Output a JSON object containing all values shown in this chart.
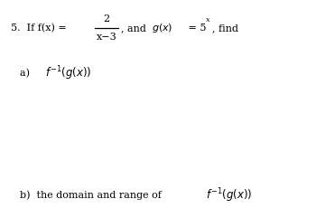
{
  "background_color": "#ffffff",
  "fig_width": 3.5,
  "fig_height": 2.41,
  "dpi": 100,
  "line1_prefix": "5.  If f(x) = ",
  "line1_frac_num": "2",
  "line1_frac_den": "x−3",
  "line1_suffix_math": "$g(x) = 5^x$, find",
  "line1_suffix_plain": ", and ",
  "part_a_label": "a)",
  "part_a_math": "$f^{-1}(g(x))$",
  "part_b_label": "b)  the domain and range of",
  "part_b_math": "$f^{-1}(g(x))$"
}
